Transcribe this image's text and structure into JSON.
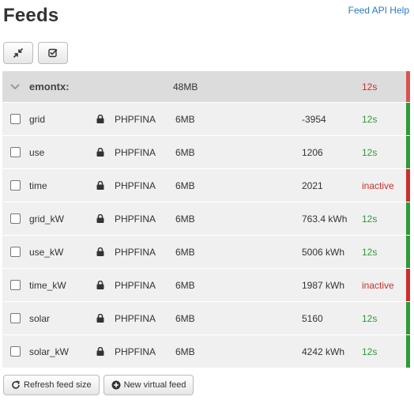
{
  "header": {
    "title": "Feeds",
    "help_link": "Feed API Help"
  },
  "toolbar": {
    "buttons": [
      {
        "icon": "collapse-arrows-icon"
      },
      {
        "icon": "check-square-icon"
      }
    ]
  },
  "colors": {
    "active_green": "#2e9b36",
    "inactive_red": "#c9302c",
    "group_bg": "#dcdcdc",
    "row_bg": "#f0f0f0",
    "link_blue": "#2a7bbf"
  },
  "group": {
    "name": "emontx:",
    "size": "48MB",
    "time": "12s",
    "status": "active"
  },
  "feeds": [
    {
      "name": "grid",
      "engine": "PHPFINA",
      "size": "6MB",
      "value": "-3954",
      "time": "12s",
      "status": "active"
    },
    {
      "name": "use",
      "engine": "PHPFINA",
      "size": "6MB",
      "value": "1206",
      "time": "12s",
      "status": "active"
    },
    {
      "name": "time",
      "engine": "PHPFINA",
      "size": "6MB",
      "value": "2021",
      "time": "inactive",
      "status": "inactive"
    },
    {
      "name": "grid_kW",
      "engine": "PHPFINA",
      "size": "6MB",
      "value": "763.4 kWh",
      "time": "12s",
      "status": "active"
    },
    {
      "name": "use_kW",
      "engine": "PHPFINA",
      "size": "6MB",
      "value": "5006 kWh",
      "time": "12s",
      "status": "active"
    },
    {
      "name": "time_kW",
      "engine": "PHPFINA",
      "size": "6MB",
      "value": "1987 kWh",
      "time": "inactive",
      "status": "inactive"
    },
    {
      "name": "solar",
      "engine": "PHPFINA",
      "size": "6MB",
      "value": "5160",
      "time": "12s",
      "status": "active"
    },
    {
      "name": "solar_kW",
      "engine": "PHPFINA",
      "size": "6MB",
      "value": "4242 kWh",
      "time": "12s",
      "status": "active"
    }
  ],
  "footer": {
    "refresh_label": "Refresh feed size",
    "new_virtual_label": "New virtual feed"
  }
}
